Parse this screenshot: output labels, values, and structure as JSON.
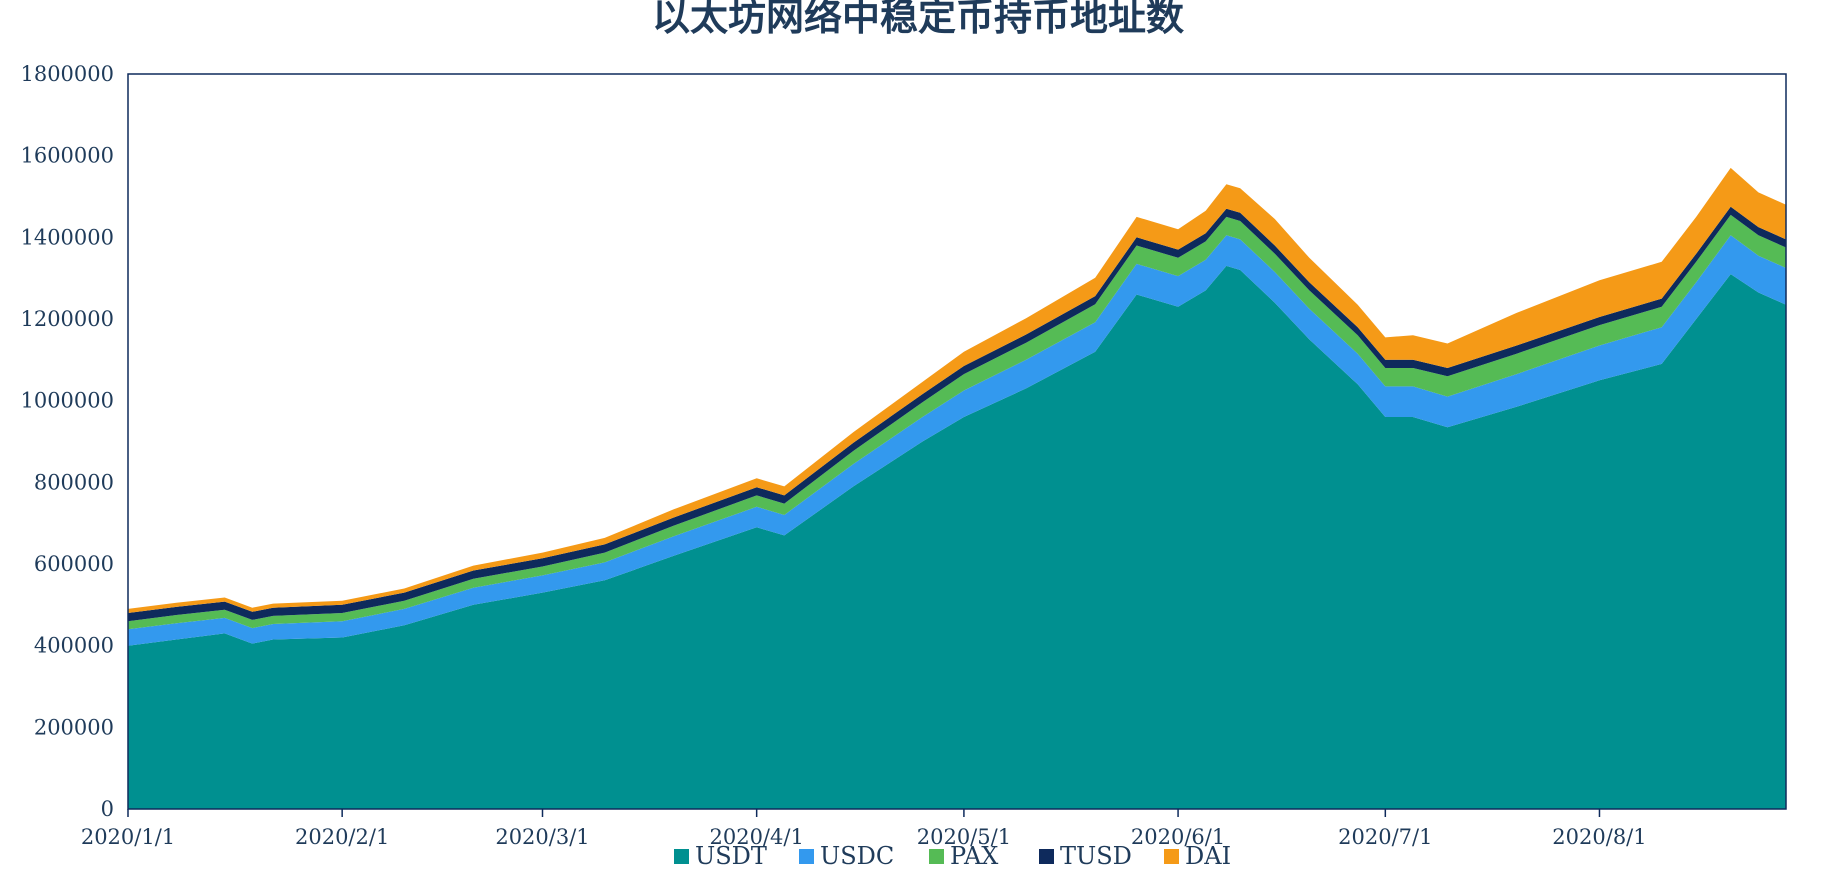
{
  "chart_data": {
    "type": "area",
    "stacked": true,
    "title": "以太坊网络中稳定币持币地址数",
    "xlabel": "",
    "ylabel": "",
    "ylim": [
      0,
      1800000
    ],
    "y_ticks": [
      "0",
      "200000",
      "400000",
      "600000",
      "800000",
      "1000000",
      "1200000",
      "1400000",
      "1600000",
      "1800000"
    ],
    "x_range": [
      "2020/1/1",
      "2020/8/28"
    ],
    "x_ticks": [
      "2020/1/1",
      "2020/2/1",
      "2020/3/1",
      "2020/4/1",
      "2020/5/1",
      "2020/6/1",
      "2020/7/1",
      "2020/8/1"
    ],
    "grid": false,
    "legend_position": "bottom",
    "x": [
      "2020/1/1",
      "2020/1/8",
      "2020/1/15",
      "2020/1/19",
      "2020/1/22",
      "2020/2/1",
      "2020/2/10",
      "2020/2/20",
      "2020/3/1",
      "2020/3/10",
      "2020/3/20",
      "2020/4/1",
      "2020/4/5",
      "2020/4/15",
      "2020/4/25",
      "2020/5/1",
      "2020/5/10",
      "2020/5/20",
      "2020/5/26",
      "2020/6/1",
      "2020/6/5",
      "2020/6/8",
      "2020/6/10",
      "2020/6/15",
      "2020/6/20",
      "2020/6/27",
      "2020/7/1",
      "2020/7/5",
      "2020/7/10",
      "2020/7/20",
      "2020/8/1",
      "2020/8/10",
      "2020/8/15",
      "2020/8/20",
      "2020/8/24",
      "2020/8/28"
    ],
    "series": [
      {
        "name": "USDT",
        "color": "#009090",
        "values": [
          400000,
          415000,
          430000,
          405000,
          415000,
          420000,
          450000,
          500000,
          530000,
          560000,
          620000,
          690000,
          670000,
          790000,
          900000,
          960000,
          1030000,
          1120000,
          1260000,
          1230000,
          1270000,
          1330000,
          1320000,
          1240000,
          1150000,
          1040000,
          960000,
          960000,
          935000,
          985000,
          1050000,
          1090000,
          1200000,
          1310000,
          1265000,
          1235000
        ]
      },
      {
        "name": "USDC",
        "color": "#3399ee",
        "values": [
          40000,
          40000,
          38000,
          38000,
          38000,
          40000,
          40000,
          42000,
          42000,
          44000,
          48000,
          50000,
          50000,
          55000,
          60000,
          65000,
          70000,
          72000,
          75000,
          75000,
          75000,
          75000,
          75000,
          75000,
          75000,
          75000,
          75000,
          75000,
          75000,
          80000,
          85000,
          90000,
          90000,
          95000,
          90000,
          90000
        ]
      },
      {
        "name": "PAX",
        "color": "#55bb55",
        "values": [
          20000,
          20000,
          20000,
          20000,
          20000,
          20000,
          20000,
          22000,
          22000,
          24000,
          26000,
          28000,
          28000,
          32000,
          36000,
          40000,
          42000,
          44000,
          45000,
          45000,
          45000,
          45000,
          45000,
          45000,
          45000,
          45000,
          45000,
          45000,
          50000,
          50000,
          50000,
          50000,
          50000,
          50000,
          50000,
          50000
        ]
      },
      {
        "name": "TUSD",
        "color": "#0e2a5c",
        "values": [
          20000,
          20000,
          20000,
          20000,
          20000,
          20000,
          20000,
          20000,
          20000,
          20000,
          20000,
          20000,
          20000,
          20000,
          20000,
          20000,
          20000,
          20000,
          20000,
          20000,
          20000,
          20000,
          20000,
          20000,
          20000,
          20000,
          20000,
          20000,
          20000,
          20000,
          20000,
          20000,
          20000,
          20000,
          20000,
          20000
        ]
      },
      {
        "name": "DAI",
        "color": "#f59a17",
        "values": [
          10000,
          10000,
          10000,
          10000,
          10000,
          10000,
          10000,
          12000,
          14000,
          16000,
          20000,
          22000,
          22000,
          26000,
          30000,
          35000,
          40000,
          45000,
          50000,
          50000,
          55000,
          60000,
          60000,
          65000,
          60000,
          55000,
          55000,
          60000,
          60000,
          80000,
          90000,
          90000,
          90000,
          95000,
          85000,
          85000
        ]
      }
    ]
  }
}
